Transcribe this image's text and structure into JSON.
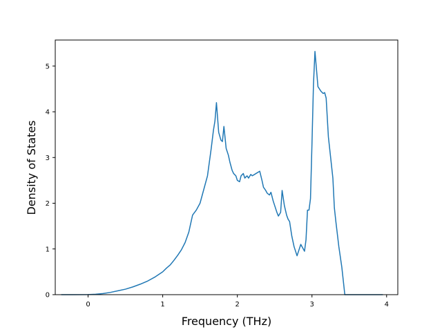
{
  "chart_data": {
    "type": "line",
    "title": "",
    "xlabel": "Frequency (THz)",
    "ylabel": "Density of States",
    "xlim": [
      -0.44,
      4.15
    ],
    "ylim": [
      0,
      5.57
    ],
    "xticks": [
      0,
      1,
      2,
      3,
      4
    ],
    "yticks": [
      0,
      1,
      2,
      3,
      4,
      5
    ],
    "grid": false,
    "line_color": "#1f77b4",
    "series": [
      {
        "x": [
          -0.36,
          -0.2,
          0.0,
          0.1,
          0.2,
          0.3,
          0.4,
          0.5,
          0.6,
          0.7,
          0.8,
          0.9,
          1.0,
          1.05,
          1.1,
          1.15,
          1.2,
          1.25,
          1.3,
          1.35,
          1.37,
          1.4,
          1.45,
          1.5,
          1.55,
          1.6,
          1.65,
          1.68,
          1.7,
          1.72,
          1.75,
          1.78,
          1.8,
          1.82,
          1.85,
          1.88,
          1.9,
          1.93,
          1.95,
          1.98,
          2.0,
          2.03,
          2.05,
          2.08,
          2.1,
          2.13,
          2.15,
          2.18,
          2.2,
          2.25,
          2.3,
          2.33,
          2.35,
          2.38,
          2.4,
          2.43,
          2.45,
          2.48,
          2.5,
          2.53,
          2.55,
          2.58,
          2.6,
          2.63,
          2.66,
          2.68,
          2.7,
          2.73,
          2.76,
          2.8,
          2.85,
          2.9,
          2.92,
          2.94,
          2.96,
          2.98,
          3.0,
          3.02,
          3.04,
          3.08,
          3.12,
          3.15,
          3.17,
          3.19,
          3.22,
          3.25,
          3.28,
          3.3,
          3.32,
          3.36,
          3.4,
          3.44,
          3.48,
          3.52,
          3.55,
          3.58,
          3.62,
          3.7,
          3.8,
          3.9,
          3.95
        ],
        "y": [
          0,
          0,
          0.002,
          0.01,
          0.025,
          0.05,
          0.085,
          0.12,
          0.17,
          0.23,
          0.3,
          0.39,
          0.5,
          0.58,
          0.65,
          0.75,
          0.86,
          0.98,
          1.14,
          1.37,
          1.52,
          1.74,
          1.85,
          2.0,
          2.3,
          2.6,
          3.2,
          3.6,
          3.8,
          4.2,
          3.55,
          3.38,
          3.35,
          3.68,
          3.2,
          3.05,
          2.9,
          2.72,
          2.65,
          2.6,
          2.5,
          2.47,
          2.6,
          2.65,
          2.55,
          2.6,
          2.55,
          2.63,
          2.6,
          2.65,
          2.7,
          2.5,
          2.35,
          2.28,
          2.22,
          2.18,
          2.24,
          2.05,
          1.95,
          1.8,
          1.72,
          1.8,
          2.28,
          1.95,
          1.74,
          1.65,
          1.6,
          1.28,
          1.05,
          0.85,
          1.1,
          0.95,
          1.2,
          1.85,
          1.85,
          2.1,
          3.3,
          4.6,
          5.32,
          4.55,
          4.45,
          4.4,
          4.42,
          4.3,
          3.45,
          3.0,
          2.55,
          1.9,
          1.6,
          1.05,
          0.6,
          0.0,
          0,
          0,
          0,
          0,
          0,
          0,
          0,
          0,
          0
        ]
      }
    ]
  }
}
